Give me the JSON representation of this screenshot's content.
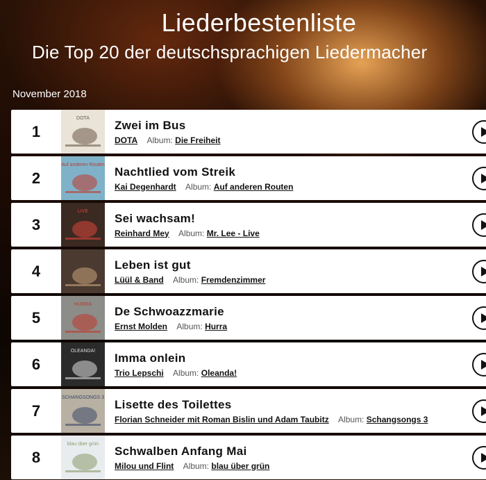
{
  "header": {
    "title": "Liederbestenliste",
    "subtitle": "Die Top 20 der deutschsprachigen Liedermacher",
    "month": "November 2018"
  },
  "album_label": "Album:",
  "entries": [
    {
      "rank": "1",
      "song": "Zwei im Bus",
      "artist": "DOTA",
      "album": "Die Freiheit"
    },
    {
      "rank": "2",
      "song": "Nachtlied vom Streik",
      "artist": "Kai Degenhardt",
      "album": "Auf anderen Routen"
    },
    {
      "rank": "3",
      "song": "Sei wachsam!",
      "artist": "Reinhard Mey",
      "album": "Mr. Lee - Live"
    },
    {
      "rank": "4",
      "song": "Leben ist gut",
      "artist": "Lüül & Band",
      "album": "Fremdenzimmer"
    },
    {
      "rank": "5",
      "song": "De Schwoazzmarie",
      "artist": "Ernst Molden",
      "album": "Hurra"
    },
    {
      "rank": "6",
      "song": "Imma onlein",
      "artist": "Trio Lepschi",
      "album": "Oleanda!"
    },
    {
      "rank": "7",
      "song": "Lisette des Toilettes",
      "artist": "Florian Schneider mit Roman Bislin und Adam Taubitz",
      "album": "Schangsongs 3"
    },
    {
      "rank": "8",
      "song": "Schwalben Anfang Mai",
      "artist": "Milou und Flint",
      "album": "blau über grün"
    }
  ],
  "covers": [
    {
      "bg": "#e9e3d8",
      "fg": "#6b5a48",
      "logo_text": "DOTA"
    },
    {
      "bg": "#7fb2c9",
      "fg": "#c0392b",
      "logo_text": "Auf anderen Routen"
    },
    {
      "bg": "#3a2a22",
      "fg": "#d9443a",
      "logo_text": "LIVE"
    },
    {
      "bg": "#4a3a30",
      "fg": "#c8a27a",
      "logo_text": ""
    },
    {
      "bg": "#8c8c88",
      "fg": "#c0392b",
      "logo_text": "HURRA"
    },
    {
      "bg": "#2b2b2b",
      "fg": "#dcdcdc",
      "logo_text": "OLEANDA!"
    },
    {
      "bg": "#b8b0a2",
      "fg": "#3a4a6a",
      "logo_text": "SCHANGSONGS 3"
    },
    {
      "bg": "#e8ecef",
      "fg": "#8a9a6a",
      "logo_text": "blau über grün"
    }
  ],
  "icons": {
    "play": "play-circle-icon"
  }
}
